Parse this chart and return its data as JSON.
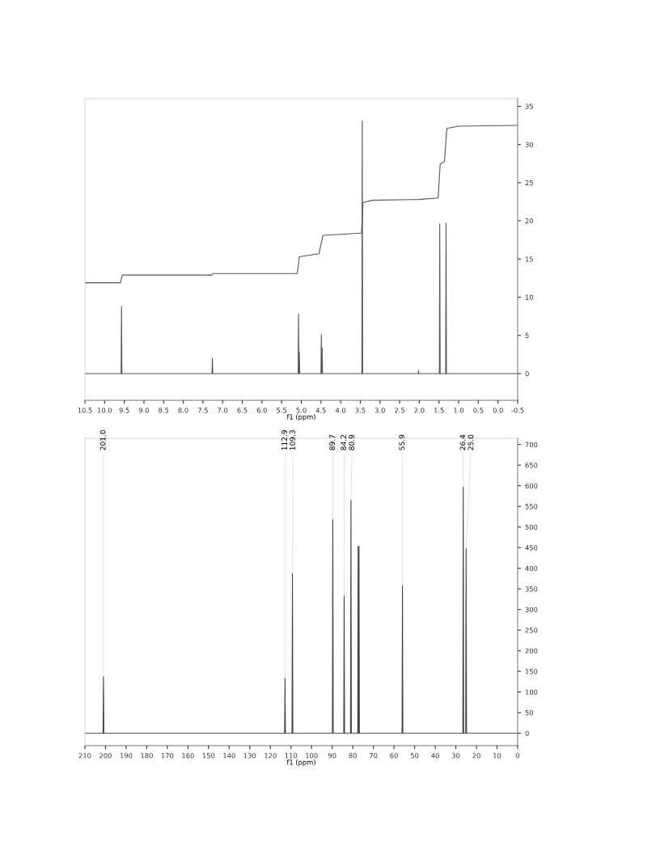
{
  "chart_data": [
    {
      "type": "line",
      "xlabel": "f1 (ppm)",
      "xlim": [
        10.5,
        -0.5
      ],
      "xticks": [
        10.5,
        {
          "value": 10,
          "label": "10.0"
        },
        9.5,
        {
          "value": 9,
          "label": "9.0"
        },
        8.5,
        {
          "value": 8,
          "label": "8.0"
        },
        7.5,
        {
          "value": 7,
          "label": "7.0"
        },
        6.5,
        {
          "value": 6,
          "label": "6.0"
        },
        5.5,
        {
          "value": 5,
          "label": "5.0"
        },
        4.5,
        {
          "value": 4,
          "label": "4.0"
        },
        3.5,
        {
          "value": 3,
          "label": "3.0"
        },
        2.5,
        {
          "value": 2,
          "label": "2.0"
        },
        1.5,
        {
          "value": 1,
          "label": "1.0"
        },
        0.5,
        {
          "value": 0,
          "label": "0.0"
        },
        -0.5
      ],
      "ylim": [
        -3.5,
        36
      ],
      "yticks": [
        0,
        5,
        10,
        15,
        20,
        25,
        30,
        35
      ],
      "series": [
        {
          "type": "line",
          "color": "#555555",
          "x": [
            10.5,
            9.58,
            9.57,
            9.56,
            7.27,
            7.26,
            7.25,
            5.08,
            5.07,
            5.06,
            5.05,
            5.04,
            5.03,
            4.5,
            4.49,
            4.485,
            4.47,
            4.46,
            3.46,
            3.45,
            3.44,
            2.03,
            2.02,
            2.01,
            1.49,
            1.48,
            1.47,
            1.33,
            1.32,
            1.31,
            -0.5
          ],
          "values": [
            0,
            0,
            8.8,
            0,
            0,
            2.0,
            0,
            0,
            7.8,
            0,
            2.8,
            0,
            0,
            0,
            5.1,
            0,
            3.4,
            0,
            0,
            33.1,
            0,
            0,
            0.4,
            0,
            0,
            19.6,
            0,
            0,
            19.7,
            0,
            0
          ]
        },
        {
          "type": "line",
          "color": "#555555",
          "x": [
            10.5,
            9.6,
            9.55,
            7.28,
            7.25,
            5.1,
            5.05,
            4.55,
            4.45,
            3.47,
            3.43,
            3.2,
            2.0,
            1.52,
            1.47,
            1.36,
            1.3,
            1.0,
            -0.5
          ],
          "values": [
            11.9,
            11.9,
            12.9,
            12.9,
            13.1,
            13.1,
            15.3,
            15.7,
            18.1,
            18.4,
            22.4,
            22.7,
            22.8,
            23.0,
            27.4,
            27.8,
            32.1,
            32.4,
            32.5
          ]
        }
      ]
    },
    {
      "type": "line",
      "xlabel": "f1 (ppm)",
      "xlim": [
        210,
        0
      ],
      "xticks": [
        210,
        200,
        190,
        180,
        170,
        160,
        150,
        140,
        130,
        120,
        110,
        100,
        90,
        80,
        70,
        60,
        50,
        40,
        30,
        20,
        10,
        0
      ],
      "ylim": [
        -30,
        715
      ],
      "yticks": [
        0,
        50,
        100,
        150,
        200,
        250,
        300,
        350,
        400,
        450,
        500,
        550,
        600,
        650,
        700
      ],
      "annotations": [
        {
          "text": "201.0",
          "x": 201.0,
          "y": 137
        },
        {
          "text": "112.9",
          "x": 112.9,
          "y": 133
        },
        {
          "text": "109.3",
          "x": 109.3,
          "y": 387
        },
        {
          "text": "89.7",
          "x": 89.7,
          "y": 518
        },
        {
          "text": "84.2",
          "x": 84.2,
          "y": 333
        },
        {
          "text": "80.9",
          "x": 80.9,
          "y": 565
        },
        {
          "text": "55.9",
          "x": 55.9,
          "y": 357
        },
        {
          "text": "26.4",
          "x": 26.4,
          "y": 597
        },
        {
          "text": "25.0",
          "x": 25.0,
          "y": 448
        }
      ],
      "series": [
        {
          "type": "line",
          "color": "#444444",
          "x": [
            210,
            201.2,
            201.0,
            200.8,
            113.1,
            112.9,
            112.7,
            109.5,
            109.3,
            109.1,
            89.9,
            89.7,
            89.5,
            84.4,
            84.2,
            84.0,
            81.1,
            80.9,
            80.7,
            77.6,
            77.4,
            77.2,
            77.0,
            76.8,
            56.1,
            55.9,
            55.7,
            26.6,
            26.4,
            26.2,
            25.2,
            25.0,
            24.8,
            0
          ],
          "values": [
            0,
            0,
            137,
            0,
            0,
            133,
            0,
            0,
            387,
            0,
            0,
            518,
            0,
            0,
            333,
            0,
            0,
            565,
            0,
            0,
            453,
            0,
            453,
            0,
            0,
            357,
            0,
            0,
            597,
            0,
            0,
            448,
            0,
            0
          ]
        }
      ]
    }
  ]
}
